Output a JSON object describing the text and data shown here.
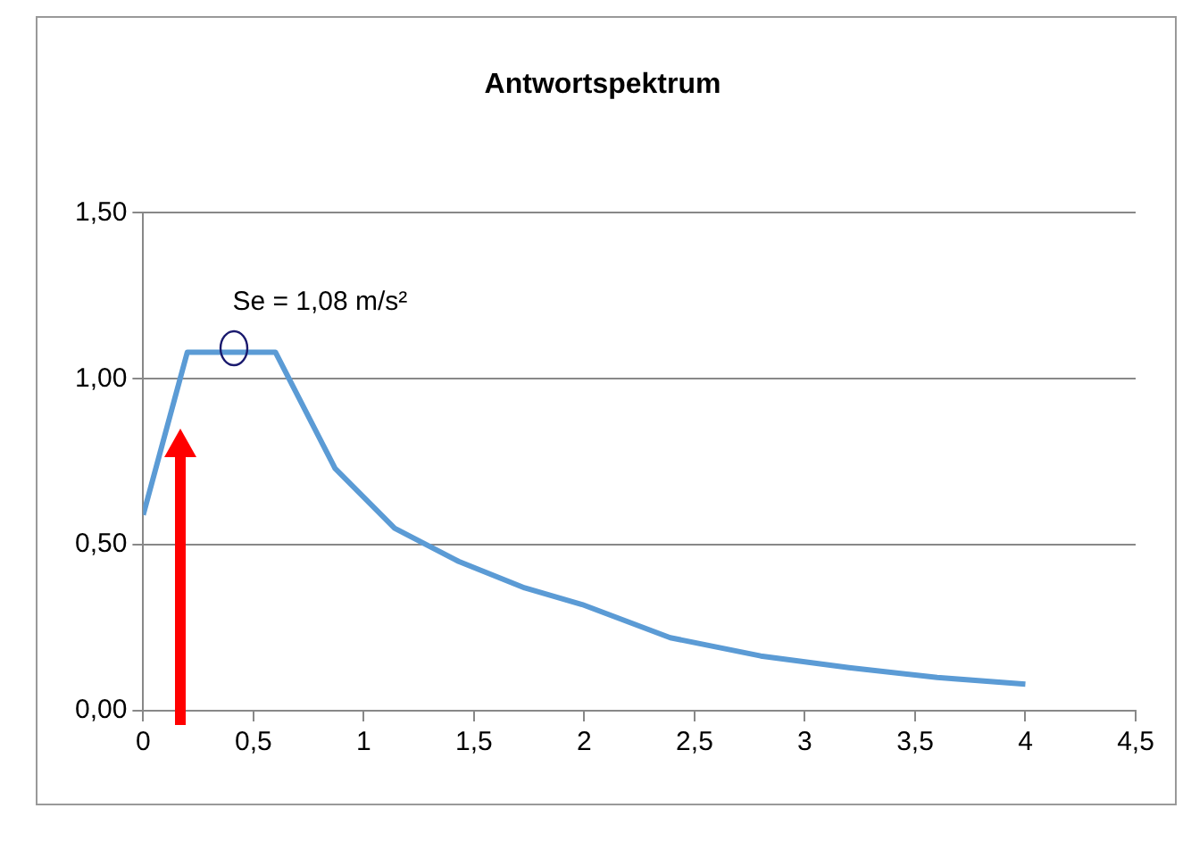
{
  "chart_data": {
    "type": "line",
    "title": "Antwortspektrum",
    "x": [
      0,
      0.2,
      0.6,
      0.87,
      1.14,
      1.43,
      1.73,
      1.99,
      2.39,
      2.8,
      3.2,
      3.6,
      4.0
    ],
    "series": [
      {
        "color": "#5b9bd5",
        "values": [
          0.59,
          1.08,
          1.08,
          0.73,
          0.55,
          0.45,
          0.37,
          0.32,
          0.22,
          0.165,
          0.13,
          0.1,
          0.08
        ]
      }
    ],
    "xlim": [
      0,
      4.5
    ],
    "xticks": [
      0,
      {
        "value": 0.5,
        "label": "0,5"
      },
      1,
      {
        "value": 1.5,
        "label": "1,5"
      },
      2,
      {
        "value": 2.5,
        "label": "2,5"
      },
      3,
      {
        "value": 3.5,
        "label": "3,5"
      },
      4,
      {
        "value": 4.5,
        "label": "4,5"
      }
    ],
    "ylim": [
      0,
      1.5
    ],
    "yticks": [
      {
        "value": 0,
        "label": "0,00"
      },
      {
        "value": 0.5,
        "label": "0,50"
      },
      {
        "value": 1,
        "label": "1,00"
      },
      {
        "value": 1.5,
        "label": "1,50"
      }
    ],
    "grid": "y",
    "legend": false,
    "marker": "none",
    "line_style": "solid",
    "annotations": [
      "Se = 1,08 m/s²"
    ]
  }
}
